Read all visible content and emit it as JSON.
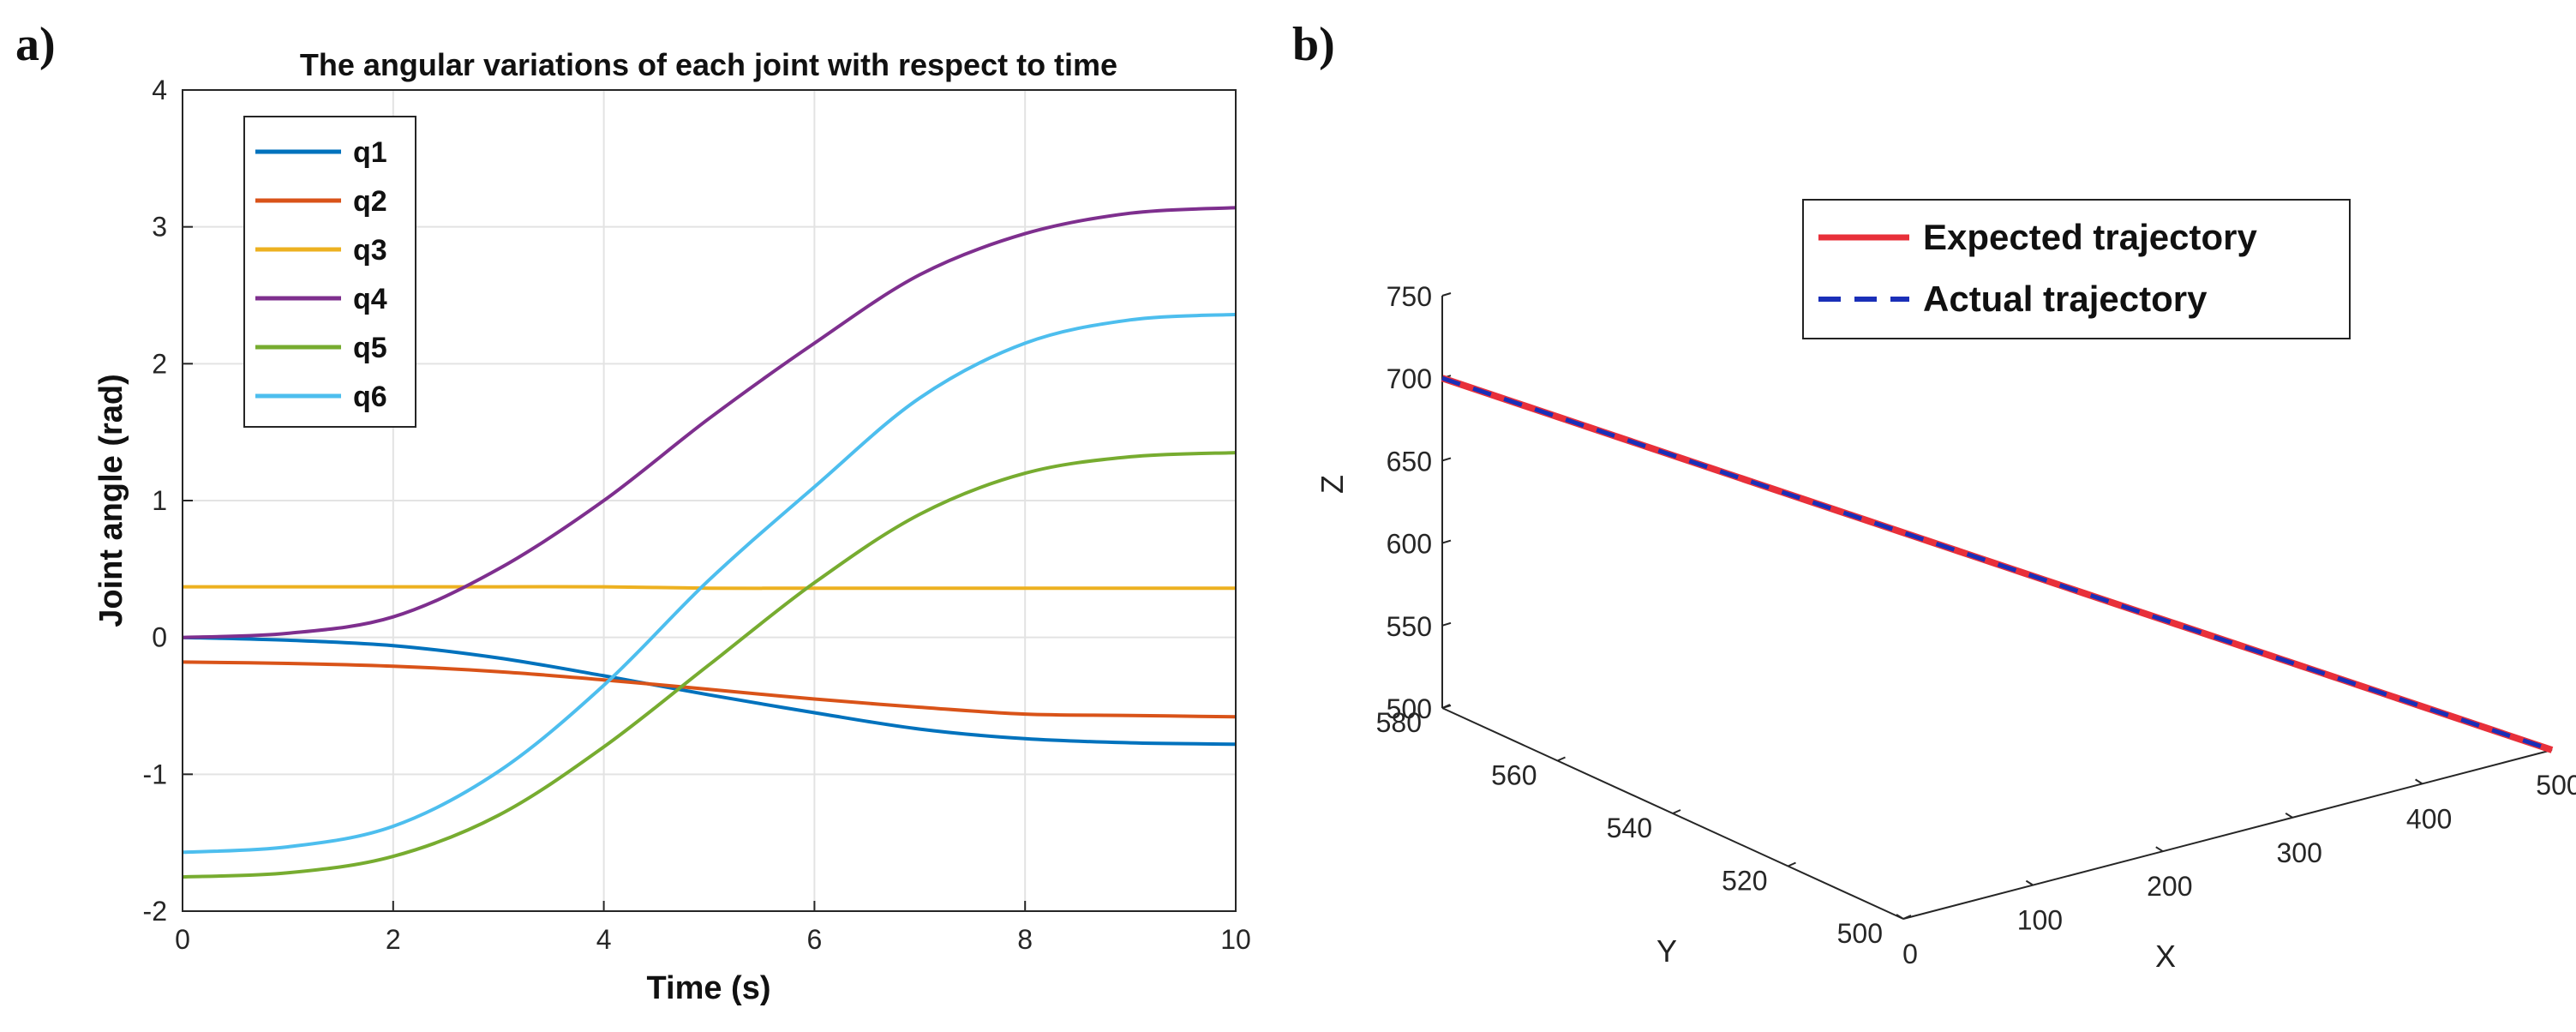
{
  "panels": {
    "a_label": "a)",
    "b_label": "b)"
  },
  "chart_data": [
    {
      "type": "line",
      "title": "The angular variations of each joint with respect to time",
      "xlabel": "Time (s)",
      "ylabel": "Joint angle (rad)",
      "xlim": [
        0,
        10
      ],
      "ylim": [
        -2,
        4
      ],
      "xticks": [
        "0",
        "2",
        "4",
        "6",
        "8",
        "10"
      ],
      "yticks": [
        "-2",
        "-1",
        "0",
        "1",
        "2",
        "3",
        "4"
      ],
      "grid": true,
      "legend_position": "top-left",
      "x": [
        0,
        1,
        2,
        3,
        4,
        5,
        6,
        7,
        8,
        9,
        10
      ],
      "series": [
        {
          "name": "q1",
          "color": "#0072BD",
          "values": [
            0.0,
            -0.02,
            -0.06,
            -0.15,
            -0.28,
            -0.42,
            -0.55,
            -0.67,
            -0.74,
            -0.77,
            -0.78
          ]
        },
        {
          "name": "q2",
          "color": "#D95319",
          "values": [
            -0.18,
            -0.19,
            -0.21,
            -0.25,
            -0.31,
            -0.38,
            -0.45,
            -0.51,
            -0.56,
            -0.57,
            -0.58
          ]
        },
        {
          "name": "q3",
          "color": "#EDB120",
          "values": [
            0.37,
            0.37,
            0.37,
            0.37,
            0.37,
            0.36,
            0.36,
            0.36,
            0.36,
            0.36,
            0.36
          ]
        },
        {
          "name": "q4",
          "color": "#7E2F8E",
          "values": [
            0.0,
            0.03,
            0.15,
            0.5,
            1.0,
            1.6,
            2.15,
            2.65,
            2.95,
            3.1,
            3.14
          ]
        },
        {
          "name": "q5",
          "color": "#77AC30",
          "values": [
            -1.75,
            -1.72,
            -1.6,
            -1.3,
            -0.8,
            -0.2,
            0.4,
            0.9,
            1.2,
            1.32,
            1.35
          ]
        },
        {
          "name": "q6",
          "color": "#4DBEEE",
          "values": [
            -1.57,
            -1.53,
            -1.38,
            -0.98,
            -0.35,
            0.42,
            1.1,
            1.75,
            2.15,
            2.32,
            2.36
          ]
        }
      ]
    },
    {
      "type": "line3d",
      "xlabel": "X",
      "ylabel": "Y",
      "zlabel": "Z",
      "xlim": [
        0,
        500
      ],
      "ylim": [
        500,
        580
      ],
      "zlim": [
        500,
        750
      ],
      "xticks": [
        "0",
        "100",
        "200",
        "300",
        "400",
        "500"
      ],
      "yticks": [
        "500",
        "520",
        "540",
        "560",
        "580"
      ],
      "zticks": [
        "500",
        "550",
        "600",
        "650",
        "700",
        "750"
      ],
      "grid": false,
      "legend_position": "top-right",
      "series": [
        {
          "name": "Expected trajectory",
          "color": "#e8303a",
          "style": "solid",
          "start": {
            "x": 0,
            "y": 580,
            "z": 700
          },
          "end": {
            "x": 500,
            "y": 500,
            "z": 500
          }
        },
        {
          "name": "Actual trajectory",
          "color": "#1a2fb8",
          "style": "dashed",
          "start": {
            "x": 0,
            "y": 580,
            "z": 700
          },
          "end": {
            "x": 500,
            "y": 500,
            "z": 500
          }
        }
      ]
    }
  ]
}
